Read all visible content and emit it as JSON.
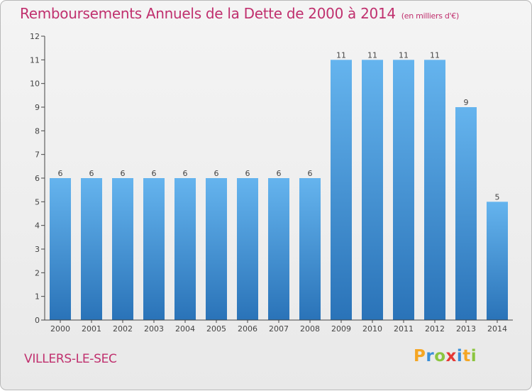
{
  "chart_data": {
    "type": "bar",
    "title": "Remboursements Annuels de la Dette de 2000 à 2014",
    "unit_note": "(en milliers d'€)",
    "categories": [
      "2000",
      "2001",
      "2002",
      "2003",
      "2004",
      "2005",
      "2006",
      "2007",
      "2008",
      "2009",
      "2010",
      "2011",
      "2012",
      "2013",
      "2014"
    ],
    "values": [
      6,
      6,
      6,
      6,
      6,
      6,
      6,
      6,
      6,
      11,
      11,
      11,
      11,
      9,
      5
    ],
    "data_labels": [
      "6",
      "6",
      "6",
      "6",
      "6",
      "6",
      "6",
      "6",
      "6",
      "11",
      "11",
      "11",
      "11",
      "9",
      "5"
    ],
    "y_ticks": [
      "0",
      "1",
      "2",
      "3",
      "4",
      "5",
      "6",
      "7",
      "8",
      "9",
      "10",
      "11",
      "12"
    ],
    "ylim": [
      0,
      12
    ],
    "grid": false,
    "bar_color": "#3d8fd6",
    "bar_color_light": "#65b4ee",
    "bar_color_dark": "#2a73b8"
  },
  "commune": "VILLERS-LE-SEC",
  "logo": {
    "letters": [
      "P",
      "r",
      "o",
      "x",
      "i",
      "t",
      "i"
    ],
    "colors": [
      "#f5a623",
      "#3a8fd8",
      "#8bc53f",
      "#e53935",
      "#3a8fd8",
      "#f5a623",
      "#8bc53f"
    ]
  },
  "colors": {
    "title": "#c0306e",
    "axis": "#444444"
  }
}
